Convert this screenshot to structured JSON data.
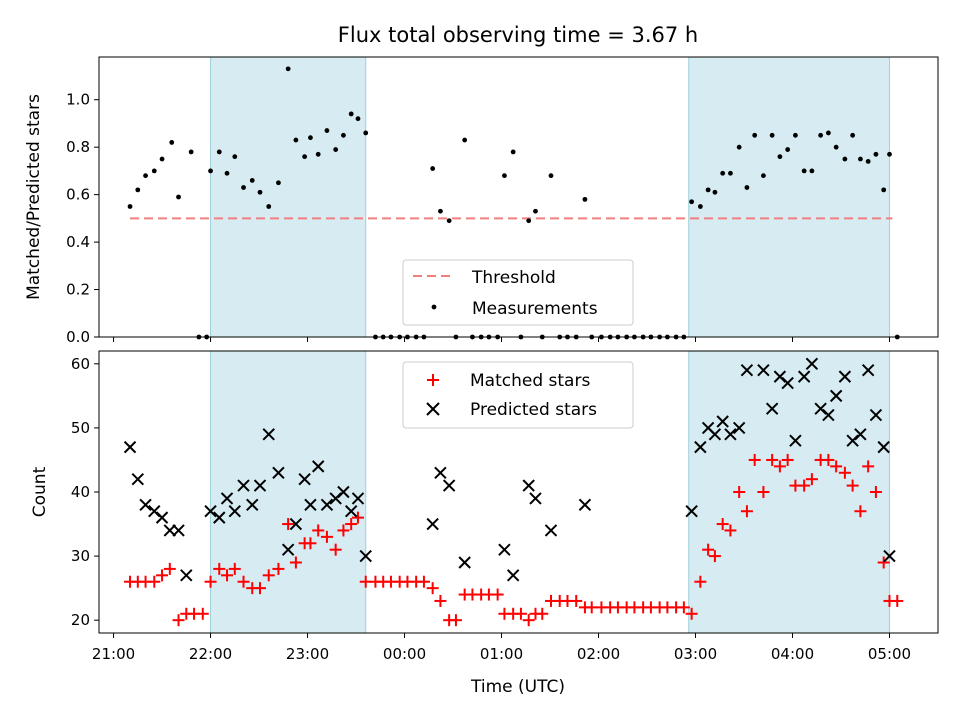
{
  "chart_data": [
    {
      "type": "scatter",
      "title": "Flux total observing time = 3.67 h",
      "xlabel": "",
      "ylabel": "Matched/Predicted stars",
      "xlim": [
        20.85,
        29.5
      ],
      "ylim": [
        0,
        1.18
      ],
      "yticks": [
        0.0,
        0.2,
        0.4,
        0.6,
        0.8,
        1.0
      ],
      "ytick_labels": [
        "0.0",
        "0.2",
        "0.4",
        "0.6",
        "0.8",
        "1.0"
      ],
      "xticks": [
        21,
        22,
        23,
        24,
        25,
        26,
        27,
        28,
        29
      ],
      "shaded_spans": [
        [
          22.0,
          23.6
        ],
        [
          26.93,
          29.0
        ]
      ],
      "threshold": {
        "name": "Threshold",
        "value": 0.5,
        "x_range": [
          21.17,
          29.03
        ],
        "color": "#f08080"
      },
      "legend": {
        "position": "lower-center",
        "entries": [
          "Threshold",
          "Measurements"
        ]
      },
      "series": [
        {
          "name": "Measurements",
          "color": "#000000",
          "points": [
            [
              21.17,
              0.55
            ],
            [
              21.25,
              0.62
            ],
            [
              21.33,
              0.68
            ],
            [
              21.42,
              0.7
            ],
            [
              21.5,
              0.75
            ],
            [
              21.6,
              0.82
            ],
            [
              21.67,
              0.59
            ],
            [
              21.8,
              0.78
            ],
            [
              21.88,
              0.0
            ],
            [
              21.96,
              0.0
            ],
            [
              22.0,
              0.7
            ],
            [
              22.09,
              0.78
            ],
            [
              22.17,
              0.69
            ],
            [
              22.25,
              0.76
            ],
            [
              22.34,
              0.63
            ],
            [
              22.43,
              0.66
            ],
            [
              22.51,
              0.61
            ],
            [
              22.6,
              0.55
            ],
            [
              22.7,
              0.65
            ],
            [
              22.8,
              1.13
            ],
            [
              22.88,
              0.83
            ],
            [
              22.97,
              0.76
            ],
            [
              23.03,
              0.84
            ],
            [
              23.11,
              0.77
            ],
            [
              23.2,
              0.87
            ],
            [
              23.29,
              0.79
            ],
            [
              23.37,
              0.85
            ],
            [
              23.45,
              0.94
            ],
            [
              23.52,
              0.92
            ],
            [
              23.6,
              0.86
            ],
            [
              23.7,
              0.0
            ],
            [
              23.78,
              0.0
            ],
            [
              23.86,
              0.0
            ],
            [
              23.95,
              0.0
            ],
            [
              24.03,
              0.0
            ],
            [
              24.12,
              0.0
            ],
            [
              24.2,
              0.0
            ],
            [
              24.29,
              0.71
            ],
            [
              24.37,
              0.53
            ],
            [
              24.46,
              0.49
            ],
            [
              24.53,
              0.0
            ],
            [
              24.62,
              0.83
            ],
            [
              24.7,
              0.0
            ],
            [
              24.79,
              0.0
            ],
            [
              24.87,
              0.0
            ],
            [
              24.96,
              0.0
            ],
            [
              25.03,
              0.68
            ],
            [
              25.12,
              0.78
            ],
            [
              25.2,
              0.0
            ],
            [
              25.28,
              0.49
            ],
            [
              25.35,
              0.53
            ],
            [
              25.42,
              0.0
            ],
            [
              25.51,
              0.68
            ],
            [
              25.6,
              0.0
            ],
            [
              25.68,
              0.0
            ],
            [
              25.77,
              0.0
            ],
            [
              25.86,
              0.58
            ],
            [
              25.93,
              0.0
            ],
            [
              26.03,
              0.0
            ],
            [
              26.12,
              0.0
            ],
            [
              26.2,
              0.0
            ],
            [
              26.29,
              0.0
            ],
            [
              26.37,
              0.0
            ],
            [
              26.46,
              0.0
            ],
            [
              26.54,
              0.0
            ],
            [
              26.63,
              0.0
            ],
            [
              26.71,
              0.0
            ],
            [
              26.8,
              0.0
            ],
            [
              26.88,
              0.0
            ],
            [
              26.96,
              0.57
            ],
            [
              27.05,
              0.55
            ],
            [
              27.13,
              0.62
            ],
            [
              27.2,
              0.61
            ],
            [
              27.28,
              0.69
            ],
            [
              27.36,
              0.69
            ],
            [
              27.45,
              0.8
            ],
            [
              27.53,
              0.63
            ],
            [
              27.61,
              0.85
            ],
            [
              27.7,
              0.68
            ],
            [
              27.79,
              0.85
            ],
            [
              27.87,
              0.76
            ],
            [
              27.95,
              0.79
            ],
            [
              28.03,
              0.85
            ],
            [
              28.12,
              0.7
            ],
            [
              28.2,
              0.7
            ],
            [
              28.29,
              0.85
            ],
            [
              28.37,
              0.86
            ],
            [
              28.45,
              0.8
            ],
            [
              28.54,
              0.75
            ],
            [
              28.62,
              0.85
            ],
            [
              28.7,
              0.75
            ],
            [
              28.78,
              0.74
            ],
            [
              28.86,
              0.77
            ],
            [
              28.94,
              0.62
            ],
            [
              29.0,
              0.77
            ],
            [
              29.08,
              0.0
            ]
          ]
        }
      ]
    },
    {
      "type": "scatter",
      "title": "",
      "xlabel": "Time (UTC)",
      "ylabel": "Count",
      "xlim": [
        20.85,
        29.5
      ],
      "ylim": [
        18,
        62
      ],
      "yticks": [
        20,
        30,
        40,
        50,
        60
      ],
      "ytick_labels": [
        "20",
        "30",
        "40",
        "50",
        "60"
      ],
      "xticks": [
        21,
        22,
        23,
        24,
        25,
        26,
        27,
        28,
        29
      ],
      "xtick_labels": [
        "21:00",
        "22:00",
        "23:00",
        "00:00",
        "01:00",
        "02:00",
        "03:00",
        "04:00",
        "05:00"
      ],
      "shaded_spans": [
        [
          22.0,
          23.6
        ],
        [
          26.93,
          29.0
        ]
      ],
      "legend": {
        "position": "top-center",
        "entries": [
          "Matched stars",
          "Predicted stars"
        ]
      },
      "series": [
        {
          "name": "Matched stars",
          "marker": "+",
          "color": "#ff0000",
          "points": [
            [
              21.17,
              26
            ],
            [
              21.25,
              26
            ],
            [
              21.33,
              26
            ],
            [
              21.42,
              26
            ],
            [
              21.5,
              27
            ],
            [
              21.58,
              28
            ],
            [
              21.67,
              20
            ],
            [
              21.75,
              21
            ],
            [
              21.83,
              21
            ],
            [
              21.92,
              21
            ],
            [
              22.0,
              26
            ],
            [
              22.09,
              28
            ],
            [
              22.17,
              27
            ],
            [
              22.25,
              28
            ],
            [
              22.34,
              26
            ],
            [
              22.43,
              25
            ],
            [
              22.51,
              25
            ],
            [
              22.6,
              27
            ],
            [
              22.7,
              28
            ],
            [
              22.8,
              35
            ],
            [
              22.88,
              29
            ],
            [
              22.97,
              32
            ],
            [
              23.03,
              32
            ],
            [
              23.11,
              34
            ],
            [
              23.2,
              33
            ],
            [
              23.29,
              31
            ],
            [
              23.37,
              34
            ],
            [
              23.45,
              35
            ],
            [
              23.52,
              36
            ],
            [
              23.6,
              26
            ],
            [
              23.7,
              26
            ],
            [
              23.78,
              26
            ],
            [
              23.86,
              26
            ],
            [
              23.95,
              26
            ],
            [
              24.03,
              26
            ],
            [
              24.12,
              26
            ],
            [
              24.2,
              26
            ],
            [
              24.29,
              25
            ],
            [
              24.37,
              23
            ],
            [
              24.46,
              20
            ],
            [
              24.53,
              20
            ],
            [
              24.62,
              24
            ],
            [
              24.7,
              24
            ],
            [
              24.79,
              24
            ],
            [
              24.87,
              24
            ],
            [
              24.96,
              24
            ],
            [
              25.03,
              21
            ],
            [
              25.12,
              21
            ],
            [
              25.2,
              21
            ],
            [
              25.28,
              20
            ],
            [
              25.35,
              21
            ],
            [
              25.42,
              21
            ],
            [
              25.51,
              23
            ],
            [
              25.6,
              23
            ],
            [
              25.68,
              23
            ],
            [
              25.77,
              23
            ],
            [
              25.86,
              22
            ],
            [
              25.93,
              22
            ],
            [
              26.03,
              22
            ],
            [
              26.12,
              22
            ],
            [
              26.2,
              22
            ],
            [
              26.29,
              22
            ],
            [
              26.37,
              22
            ],
            [
              26.46,
              22
            ],
            [
              26.54,
              22
            ],
            [
              26.63,
              22
            ],
            [
              26.71,
              22
            ],
            [
              26.8,
              22
            ],
            [
              26.88,
              22
            ],
            [
              26.96,
              21
            ],
            [
              27.05,
              26
            ],
            [
              27.13,
              31
            ],
            [
              27.2,
              30
            ],
            [
              27.28,
              35
            ],
            [
              27.36,
              34
            ],
            [
              27.45,
              40
            ],
            [
              27.53,
              37
            ],
            [
              27.61,
              45
            ],
            [
              27.7,
              40
            ],
            [
              27.79,
              45
            ],
            [
              27.87,
              44
            ],
            [
              27.95,
              45
            ],
            [
              28.03,
              41
            ],
            [
              28.12,
              41
            ],
            [
              28.2,
              42
            ],
            [
              28.29,
              45
            ],
            [
              28.37,
              45
            ],
            [
              28.45,
              44
            ],
            [
              28.54,
              43
            ],
            [
              28.62,
              41
            ],
            [
              28.7,
              37
            ],
            [
              28.78,
              44
            ],
            [
              28.86,
              40
            ],
            [
              28.94,
              29
            ],
            [
              29.0,
              23
            ],
            [
              29.08,
              23
            ]
          ]
        },
        {
          "name": "Predicted stars",
          "marker": "x",
          "color": "#000000",
          "points": [
            [
              21.17,
              47
            ],
            [
              21.25,
              42
            ],
            [
              21.33,
              38
            ],
            [
              21.42,
              37
            ],
            [
              21.5,
              36
            ],
            [
              21.58,
              34
            ],
            [
              21.67,
              34
            ],
            [
              21.75,
              27
            ],
            [
              22.0,
              37
            ],
            [
              22.09,
              36
            ],
            [
              22.17,
              39
            ],
            [
              22.25,
              37
            ],
            [
              22.34,
              41
            ],
            [
              22.43,
              38
            ],
            [
              22.51,
              41
            ],
            [
              22.6,
              49
            ],
            [
              22.7,
              43
            ],
            [
              22.8,
              31
            ],
            [
              22.88,
              35
            ],
            [
              22.97,
              42
            ],
            [
              23.03,
              38
            ],
            [
              23.11,
              44
            ],
            [
              23.2,
              38
            ],
            [
              23.29,
              39
            ],
            [
              23.37,
              40
            ],
            [
              23.45,
              37
            ],
            [
              23.52,
              39
            ],
            [
              23.6,
              30
            ],
            [
              24.29,
              35
            ],
            [
              24.37,
              43
            ],
            [
              24.46,
              41
            ],
            [
              24.62,
              29
            ],
            [
              25.03,
              31
            ],
            [
              25.12,
              27
            ],
            [
              25.28,
              41
            ],
            [
              25.35,
              39
            ],
            [
              25.51,
              34
            ],
            [
              25.86,
              38
            ],
            [
              26.96,
              37
            ],
            [
              27.05,
              47
            ],
            [
              27.13,
              50
            ],
            [
              27.2,
              49
            ],
            [
              27.28,
              51
            ],
            [
              27.36,
              49
            ],
            [
              27.45,
              50
            ],
            [
              27.53,
              59
            ],
            [
              27.7,
              59
            ],
            [
              27.79,
              53
            ],
            [
              27.87,
              58
            ],
            [
              27.95,
              57
            ],
            [
              28.03,
              48
            ],
            [
              28.12,
              58
            ],
            [
              28.2,
              60
            ],
            [
              28.29,
              53
            ],
            [
              28.37,
              52
            ],
            [
              28.45,
              55
            ],
            [
              28.54,
              58
            ],
            [
              28.62,
              48
            ],
            [
              28.7,
              49
            ],
            [
              28.78,
              59
            ],
            [
              28.86,
              52
            ],
            [
              28.94,
              47
            ],
            [
              29.0,
              30
            ]
          ]
        }
      ]
    }
  ]
}
